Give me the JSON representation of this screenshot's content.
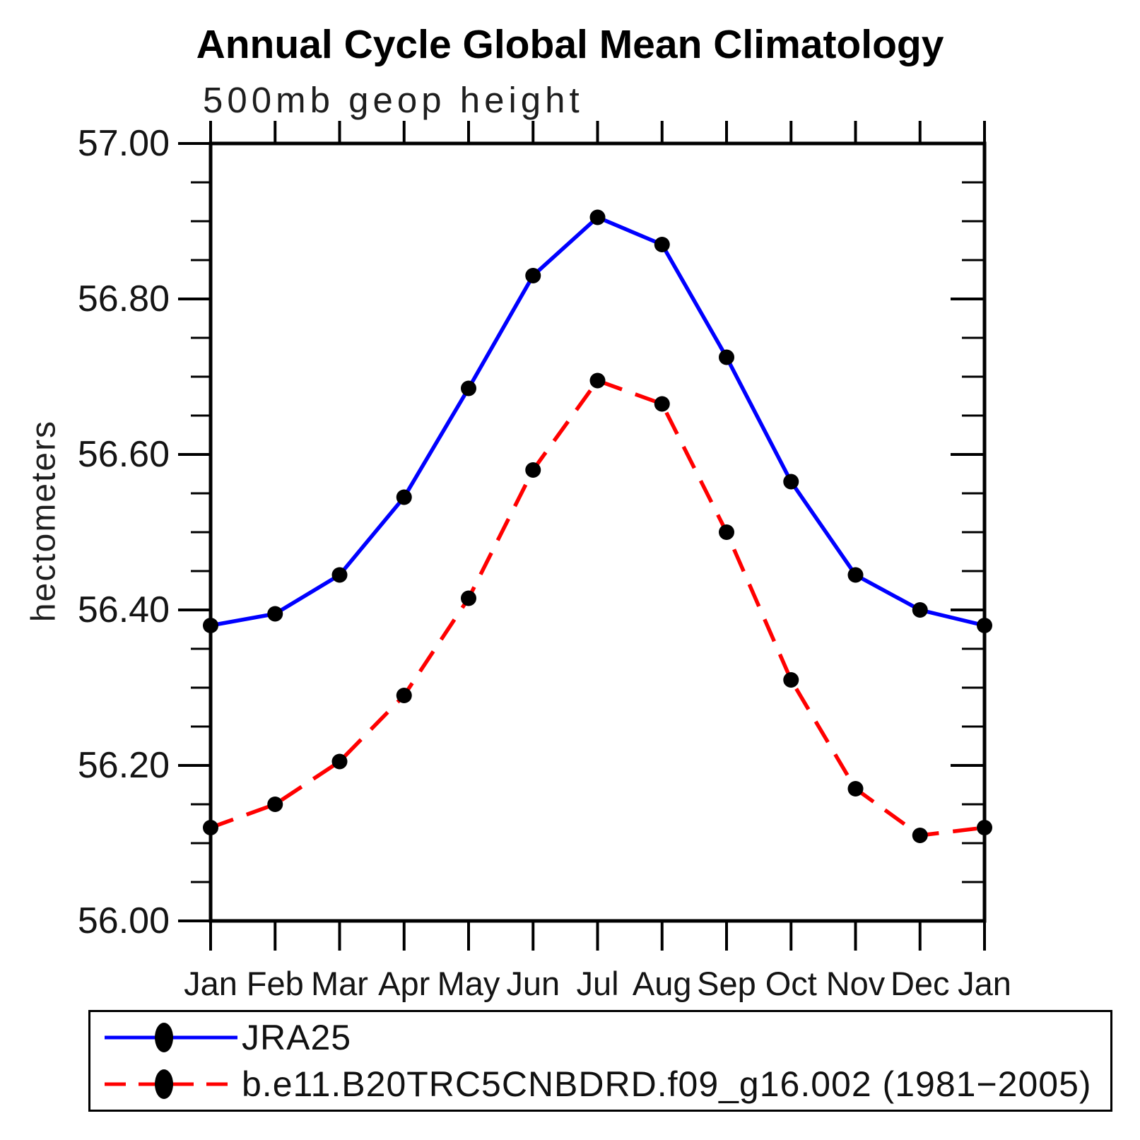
{
  "title": "Annual Cycle Global Mean Climatology",
  "subtitle": "500mb geop height",
  "ylabel": "hectometers",
  "chart_data": {
    "type": "line",
    "title": "Annual Cycle Global Mean Climatology",
    "subtitle": "500mb geop height",
    "ylabel": "hectometers",
    "categories": [
      "Jan",
      "Feb",
      "Mar",
      "Apr",
      "May",
      "Jun",
      "Jul",
      "Aug",
      "Sep",
      "Oct",
      "Nov",
      "Dec",
      "Jan"
    ],
    "series": [
      {
        "name": "JRA25",
        "color": "#0000ff",
        "line_style": "solid",
        "marker": "filled-circle",
        "marker_color": "#000000",
        "values": [
          56.38,
          56.395,
          56.445,
          56.545,
          56.685,
          56.83,
          56.905,
          56.87,
          56.725,
          56.565,
          56.445,
          56.4,
          56.38
        ]
      },
      {
        "name": "b.e11.B20TRC5CNBDRD.f09_g16.002 (1981−2005)",
        "color": "#ff0000",
        "line_style": "dashed",
        "marker": "filled-circle",
        "marker_color": "#000000",
        "values": [
          56.12,
          56.15,
          56.205,
          56.29,
          56.415,
          56.58,
          56.695,
          56.665,
          56.5,
          56.31,
          56.17,
          56.11,
          56.12
        ]
      }
    ],
    "ylim": [
      56.0,
      57.0
    ],
    "ytick_major": 0.2,
    "ytick_minor": 0.05,
    "ytick_labels": [
      "56.00",
      "56.20",
      "56.40",
      "56.60",
      "56.80",
      "57.00"
    ],
    "grid": "off",
    "legend_position": "bottom-left-box",
    "frame_color": "#000000"
  }
}
